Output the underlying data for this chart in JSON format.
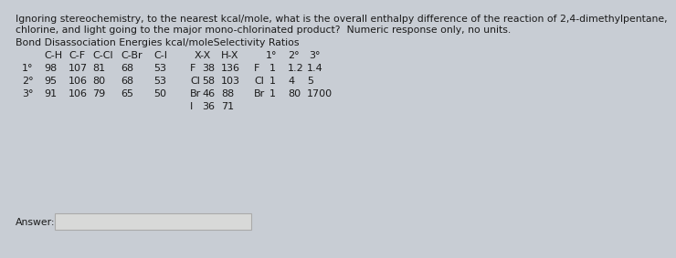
{
  "bg_color": "#c8cdd4",
  "question_lines": [
    "Ignoring stereochemistry, to the nearest kcal/mole, what is the overall enthalpy difference of the reaction of 2,4-dimethylpentane,",
    "chlorine, and light going to the major mono-chlorinated product?  Numeric response only, no units."
  ],
  "section_header": "Bond Disassociation Energies kcal/moleSelectivity Ratios",
  "text_color": "#1a1a1a",
  "answer_label": "Answer:",
  "answer_box_color": "#d8d9d8",
  "answer_box_edge": "#aaaaaa",
  "fs_q": 7.8,
  "fs_t": 8.0,
  "header_cols": {
    "C-H": 38,
    "C-F": 65,
    "C-Cl": 91,
    "C-Br": 122,
    "C-I": 158,
    "X-X": 203,
    "H-X": 232,
    "1deg": 281,
    "2deg": 305,
    "3deg": 328
  },
  "col_x": {
    "deg": 14,
    "CH": 38,
    "CF": 65,
    "CCl": 91,
    "CBr": 122,
    "CI": 158,
    "XX": 203,
    "HX": 232,
    "sel_lbl": 268,
    "s1": 285,
    "s2": 305,
    "s3": 326
  }
}
